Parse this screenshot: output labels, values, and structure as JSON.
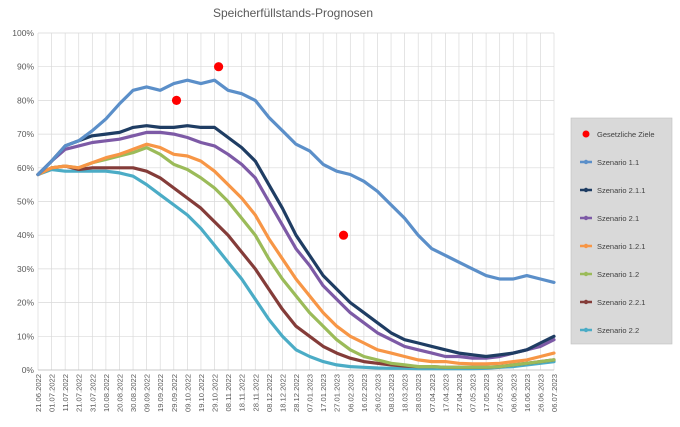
{
  "chart_data": {
    "type": "line",
    "title": "Speicherfüllstands-Prognosen",
    "xlabel": "",
    "ylabel": "",
    "ylim": [
      0,
      100
    ],
    "yticks": [
      "0%",
      "10%",
      "20%",
      "30%",
      "40%",
      "50%",
      "60%",
      "70%",
      "80%",
      "90%",
      "100%"
    ],
    "xtick_labels": [
      "21.06.2022",
      "01.07.2022",
      "11.07.2022",
      "21.07.2022",
      "31.07.2022",
      "10.08.2022",
      "20.08.2022",
      "30.08.2022",
      "09.09.2022",
      "19.09.2022",
      "29.09.2022",
      "09.10.2022",
      "19.10.2022",
      "29.10.2022",
      "08.11.2022",
      "18.11.2022",
      "28.11.2022",
      "08.12.2022",
      "18.12.2022",
      "28.12.2022",
      "07.01.2023",
      "17.01.2023",
      "27.01.2023",
      "06.02.2023",
      "16.02.2023",
      "26.02.2023",
      "08.03.2023",
      "18.03.2023",
      "28.03.2023",
      "07.04.2023",
      "17.04.2023",
      "27.04.2023",
      "07.05.2023",
      "17.05.2023",
      "27.05.2023",
      "06.06.2023",
      "16.06.2023",
      "26.06.2023",
      "06.07.2023"
    ],
    "grid": true,
    "legend_position": "right",
    "targets": {
      "name": "Gesetzliche Ziele",
      "color": "#ff0000",
      "points": [
        {
          "x": "01.10.2022",
          "y": 80
        },
        {
          "x": "01.11.2022",
          "y": 90
        },
        {
          "x": "01.02.2023",
          "y": 40
        }
      ]
    },
    "series": [
      {
        "name": "Szenario 1.1",
        "color": "#5b8fc9",
        "x": [
          "21.06.2022",
          "01.07.2022",
          "11.07.2022",
          "21.07.2022",
          "31.07.2022",
          "10.08.2022",
          "20.08.2022",
          "30.08.2022",
          "09.09.2022",
          "19.09.2022",
          "29.09.2022",
          "09.10.2022",
          "19.10.2022",
          "29.10.2022",
          "08.11.2022",
          "18.11.2022",
          "28.11.2022",
          "08.12.2022",
          "18.12.2022",
          "28.12.2022",
          "07.01.2023",
          "17.01.2023",
          "27.01.2023",
          "06.02.2023",
          "16.02.2023",
          "26.02.2023",
          "08.03.2023",
          "18.03.2023",
          "28.03.2023",
          "07.04.2023",
          "17.04.2023",
          "27.04.2023",
          "07.05.2023",
          "17.05.2023",
          "27.05.2023",
          "06.06.2023",
          "16.06.2023",
          "26.06.2023",
          "06.07.2023"
        ],
        "values": [
          58,
          62,
          66.5,
          68,
          71,
          74.5,
          79,
          83,
          84,
          83,
          85,
          86,
          85,
          86,
          83,
          82,
          80,
          75,
          71,
          67,
          65,
          61,
          59,
          58,
          56,
          53,
          49,
          45,
          40,
          36,
          34,
          32,
          30,
          28,
          27,
          27,
          28,
          27,
          26
        ]
      },
      {
        "name": "Szenario 2.1.1",
        "color": "#1f3d63",
        "x": [
          "21.06.2022",
          "01.07.2022",
          "11.07.2022",
          "21.07.2022",
          "31.07.2022",
          "10.08.2022",
          "20.08.2022",
          "30.08.2022",
          "09.09.2022",
          "19.09.2022",
          "29.09.2022",
          "09.10.2022",
          "19.10.2022",
          "29.10.2022",
          "08.11.2022",
          "18.11.2022",
          "28.11.2022",
          "08.12.2022",
          "18.12.2022",
          "28.12.2022",
          "07.01.2023",
          "17.01.2023",
          "27.01.2023",
          "06.02.2023",
          "16.02.2023",
          "26.02.2023",
          "08.03.2023",
          "18.03.2023",
          "28.03.2023",
          "07.04.2023",
          "17.04.2023",
          "27.04.2023",
          "07.05.2023",
          "17.05.2023",
          "27.05.2023",
          "06.06.2023",
          "16.06.2023",
          "26.06.2023",
          "06.07.2023"
        ],
        "values": [
          58,
          62,
          66.5,
          68,
          69.5,
          70,
          70.5,
          72,
          72.5,
          72,
          72,
          72.5,
          72,
          72,
          69,
          66,
          62,
          55,
          48,
          40,
          34,
          28,
          24,
          20,
          17,
          14,
          11,
          9,
          8,
          7,
          6,
          5,
          4.5,
          4,
          4.5,
          5,
          6,
          8,
          10
        ]
      },
      {
        "name": "Szenario 2.1",
        "color": "#7d5aa6",
        "x": [
          "21.06.2022",
          "01.07.2022",
          "11.07.2022",
          "21.07.2022",
          "31.07.2022",
          "10.08.2022",
          "20.08.2022",
          "30.08.2022",
          "09.09.2022",
          "19.09.2022",
          "29.09.2022",
          "09.10.2022",
          "19.10.2022",
          "29.10.2022",
          "08.11.2022",
          "18.11.2022",
          "28.11.2022",
          "08.12.2022",
          "18.12.2022",
          "28.12.2022",
          "07.01.2023",
          "17.01.2023",
          "27.01.2023",
          "06.02.2023",
          "16.02.2023",
          "26.02.2023",
          "08.03.2023",
          "18.03.2023",
          "28.03.2023",
          "07.04.2023",
          "17.04.2023",
          "27.04.2023",
          "07.05.2023",
          "17.05.2023",
          "27.05.2023",
          "06.06.2023",
          "16.06.2023",
          "26.06.2023",
          "06.07.2023"
        ],
        "values": [
          58,
          62,
          65.5,
          66.5,
          67.5,
          68,
          68.5,
          69.5,
          70.5,
          70.5,
          70,
          69,
          67.5,
          66.5,
          64,
          61,
          57,
          50,
          43,
          36,
          31,
          25,
          21,
          17,
          14,
          11,
          9,
          7,
          6,
          5,
          4,
          4,
          3.5,
          3.5,
          4,
          5,
          6,
          7,
          9
        ]
      },
      {
        "name": "Szenario 1.2.1",
        "color": "#f79646",
        "x": [
          "21.06.2022",
          "01.07.2022",
          "11.07.2022",
          "21.07.2022",
          "31.07.2022",
          "10.08.2022",
          "20.08.2022",
          "30.08.2022",
          "09.09.2022",
          "19.09.2022",
          "29.09.2022",
          "09.10.2022",
          "19.10.2022",
          "29.10.2022",
          "08.11.2022",
          "18.11.2022",
          "28.11.2022",
          "08.12.2022",
          "18.12.2022",
          "28.12.2022",
          "07.01.2023",
          "17.01.2023",
          "27.01.2023",
          "06.02.2023",
          "16.02.2023",
          "26.02.2023",
          "08.03.2023",
          "18.03.2023",
          "28.03.2023",
          "07.04.2023",
          "17.04.2023",
          "27.04.2023",
          "07.05.2023",
          "17.05.2023",
          "27.05.2023",
          "06.06.2023",
          "16.06.2023",
          "26.06.2023",
          "06.07.2023"
        ],
        "values": [
          58,
          60,
          60.5,
          60,
          61.5,
          63,
          64,
          65.5,
          67,
          66,
          64,
          63.5,
          62,
          59,
          55,
          51,
          46,
          39,
          33,
          27,
          22,
          17,
          13,
          10,
          8,
          6,
          5,
          4,
          3,
          2.5,
          2.5,
          2,
          1.8,
          1.8,
          2,
          2.5,
          3,
          4,
          5
        ]
      },
      {
        "name": "Szenario 1.2",
        "color": "#9bbb59",
        "x": [
          "21.06.2022",
          "01.07.2022",
          "11.07.2022",
          "21.07.2022",
          "31.07.2022",
          "10.08.2022",
          "20.08.2022",
          "30.08.2022",
          "09.09.2022",
          "19.09.2022",
          "29.09.2022",
          "09.10.2022",
          "19.10.2022",
          "29.10.2022",
          "08.11.2022",
          "18.11.2022",
          "28.11.2022",
          "08.12.2022",
          "18.12.2022",
          "28.12.2022",
          "07.01.2023",
          "17.01.2023",
          "27.01.2023",
          "06.02.2023",
          "16.02.2023",
          "26.02.2023",
          "08.03.2023",
          "18.03.2023",
          "28.03.2023",
          "07.04.2023",
          "17.04.2023",
          "27.04.2023",
          "07.05.2023",
          "17.05.2023",
          "27.05.2023",
          "06.06.2023",
          "16.06.2023",
          "26.06.2023",
          "06.07.2023"
        ],
        "values": [
          58,
          60,
          60.5,
          60,
          61.5,
          62.5,
          63.5,
          64.5,
          66,
          64,
          61,
          59.5,
          57,
          54,
          50,
          45,
          40,
          33,
          27,
          22,
          17,
          13,
          9,
          6,
          4,
          3,
          2,
          1.5,
          1,
          1,
          0.8,
          0.8,
          0.8,
          0.8,
          1,
          1.5,
          2,
          2.5,
          3
        ]
      },
      {
        "name": "Szenario 2.2.1",
        "color": "#843c39",
        "x": [
          "21.06.2022",
          "01.07.2022",
          "11.07.2022",
          "21.07.2022",
          "31.07.2022",
          "10.08.2022",
          "20.08.2022",
          "30.08.2022",
          "09.09.2022",
          "19.09.2022",
          "29.09.2022",
          "09.10.2022",
          "19.10.2022",
          "29.10.2022",
          "08.11.2022",
          "18.11.2022",
          "28.11.2022",
          "08.12.2022",
          "18.12.2022",
          "28.12.2022",
          "07.01.2023",
          "17.01.2023",
          "27.01.2023",
          "06.02.2023",
          "16.02.2023",
          "26.02.2023",
          "08.03.2023",
          "18.03.2023",
          "28.03.2023",
          "07.04.2023",
          "17.04.2023",
          "27.04.2023",
          "07.05.2023",
          "17.05.2023",
          "27.05.2023",
          "06.06.2023",
          "16.06.2023",
          "26.06.2023",
          "06.07.2023"
        ],
        "values": [
          58,
          60,
          60.5,
          59.5,
          60,
          60,
          60,
          60,
          59,
          57,
          54,
          51,
          48,
          44,
          40,
          35,
          30,
          24,
          18,
          13,
          10,
          7,
          5,
          3.5,
          2.5,
          2,
          1.5,
          1.2,
          1,
          1,
          0.8,
          0.8,
          0.8,
          0.8,
          1,
          1.5,
          2,
          2.5,
          3
        ]
      },
      {
        "name": "Szenario 2.2",
        "color": "#4bacc6",
        "x": [
          "21.06.2022",
          "01.07.2022",
          "11.07.2022",
          "21.07.2022",
          "31.07.2022",
          "10.08.2022",
          "20.08.2022",
          "30.08.2022",
          "09.09.2022",
          "19.09.2022",
          "29.09.2022",
          "09.10.2022",
          "19.10.2022",
          "29.10.2022",
          "08.11.2022",
          "18.11.2022",
          "28.11.2022",
          "08.12.2022",
          "18.12.2022",
          "28.12.2022",
          "07.01.2023",
          "17.01.2023",
          "27.01.2023",
          "06.02.2023",
          "16.02.2023",
          "26.02.2023",
          "08.03.2023",
          "18.03.2023",
          "28.03.2023",
          "07.04.2023",
          "17.04.2023",
          "27.04.2023",
          "07.05.2023",
          "17.05.2023",
          "27.05.2023",
          "06.06.2023",
          "16.06.2023",
          "26.06.2023",
          "06.07.2023"
        ],
        "values": [
          58,
          59.5,
          59,
          59,
          59,
          59,
          58.5,
          57.5,
          55,
          52,
          49,
          46,
          42,
          37,
          32,
          27,
          21,
          15,
          10,
          6,
          4,
          2.5,
          1.5,
          1,
          0.8,
          0.6,
          0.5,
          0.5,
          0.4,
          0.4,
          0.4,
          0.4,
          0.4,
          0.5,
          0.8,
          1,
          1.5,
          2,
          2.5
        ]
      }
    ]
  }
}
